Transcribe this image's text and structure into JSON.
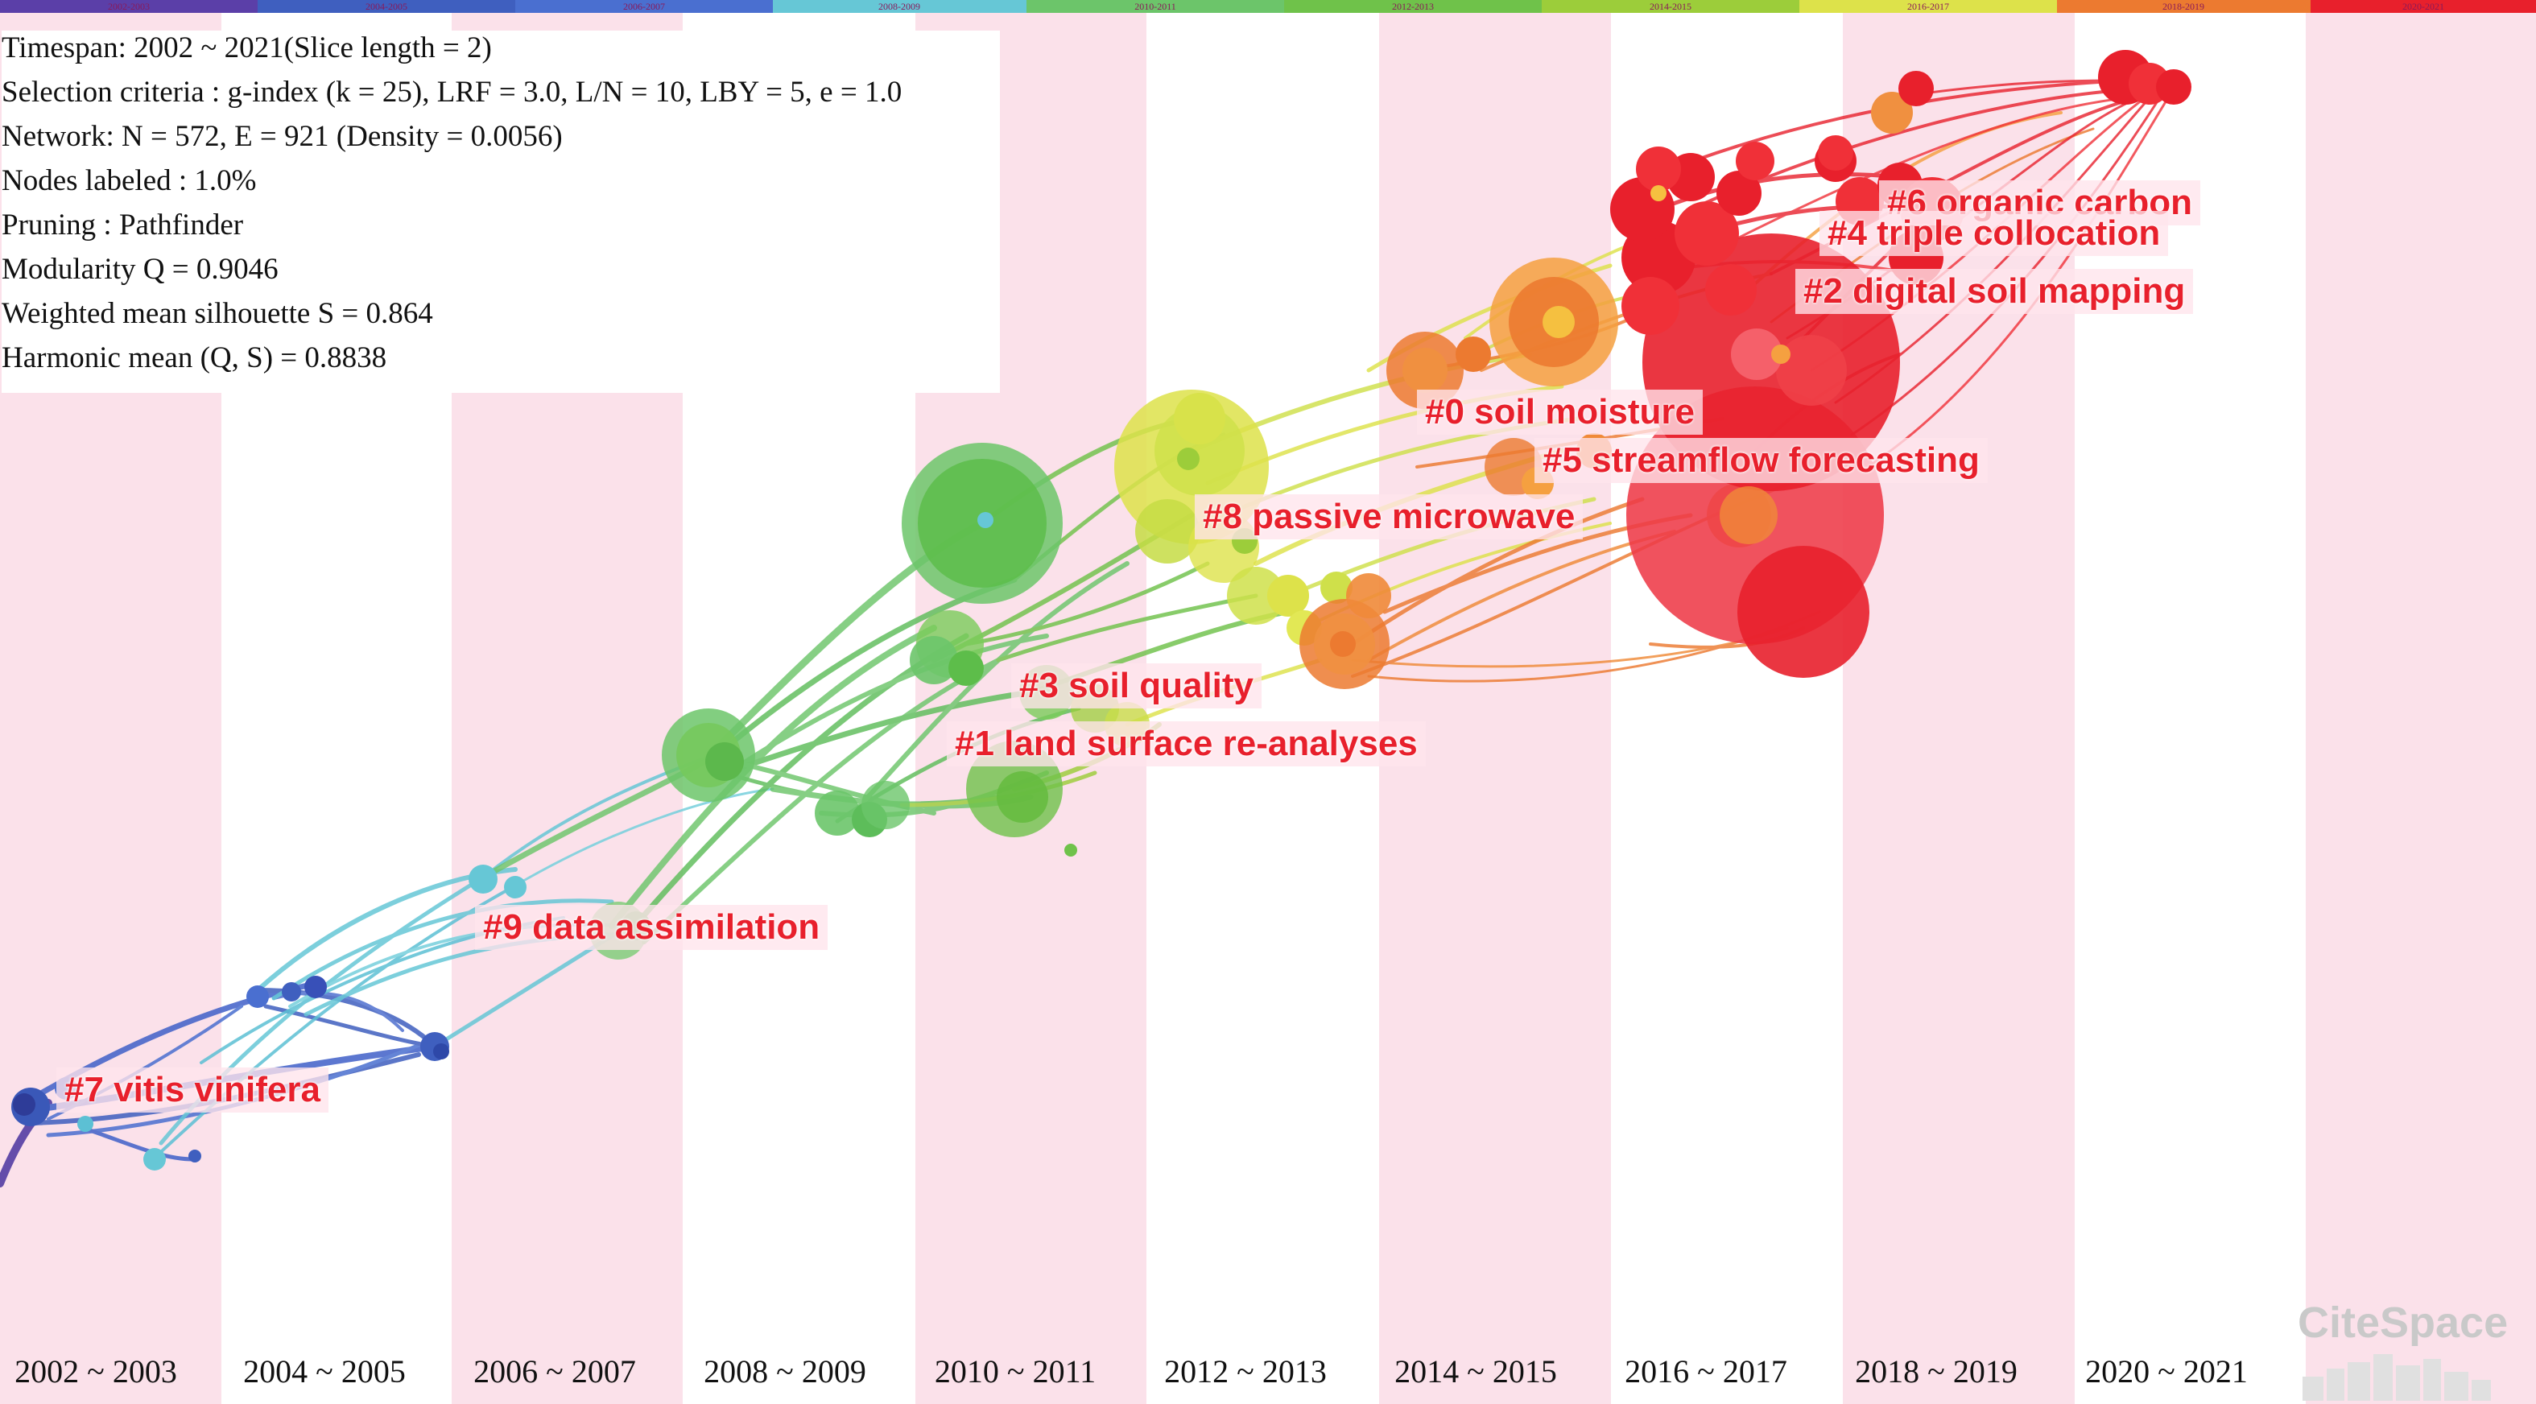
{
  "stats": {
    "timespan": "Timespan: 2002 ~ 2021(Slice length = 2)",
    "selection": "Selection criteria : g-index (k = 25), LRF = 3.0, L/N = 10, LBY = 5, e = 1.0",
    "network": "Network: N = 572, E = 921 (Density = 0.0056)",
    "nodes_labeled": "Nodes labeled : 1.0%",
    "pruning": "Pruning : Pathfinder",
    "modularity": "Modularity Q = 0.9046",
    "silhouette": "Weighted mean silhouette S = 0.864",
    "harmonic": "Harmonic mean (Q, S) = 0.8838"
  },
  "top_bar": {
    "slices": [
      "2002-2003",
      "2004-2005",
      "2006-2007",
      "2008-2009",
      "2010-2011",
      "2012-2013",
      "2014-2015",
      "2016-2017",
      "2018-2019",
      "2020-2021"
    ],
    "colors": [
      "#5b3fa8",
      "#3f5fbf",
      "#4a6fd0",
      "#66c7d6",
      "#6cc56a",
      "#6fc24a",
      "#9ccd3a",
      "#dde24a",
      "#ec7a30",
      "#e8202c"
    ]
  },
  "year_labels": [
    "2002 ~ 2003",
    "2004 ~ 2005",
    "2006 ~ 2007",
    "2008 ~ 2009",
    "2010 ~ 2011",
    "2012 ~ 2013",
    "2014 ~ 2015",
    "2016 ~ 2017",
    "2018 ~ 2019",
    "2020 ~ 2021"
  ],
  "clusters": [
    {
      "label": "#6 organic carbon"
    },
    {
      "label": "#4 triple collocation"
    },
    {
      "label": "#2 digital soil mapping"
    },
    {
      "label": "#0 soil moisture"
    },
    {
      "label": "#5 streamflow forecasting"
    },
    {
      "label": "#8 passive microwave"
    },
    {
      "label": "#3 soil quality"
    },
    {
      "label": "#1 land surface re-analyses"
    },
    {
      "label": "#9 data assimilation"
    },
    {
      "label": "#7 vitis vinifera"
    }
  ],
  "logo": {
    "text": "CiteSpace"
  },
  "colors": {
    "band_pink": "#fbe1ea",
    "label_red": "#e8202c"
  }
}
